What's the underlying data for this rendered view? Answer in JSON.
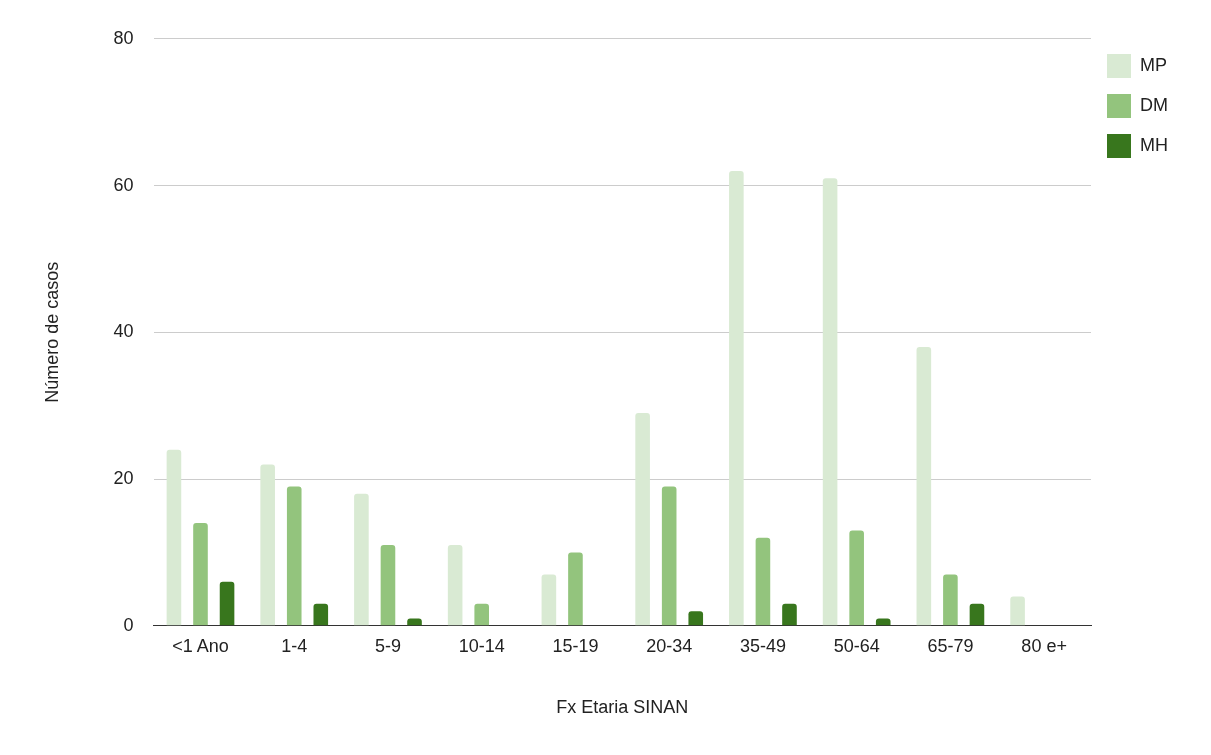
{
  "chart_data": {
    "type": "bar",
    "xlabel": "Fx Etaria SINAN",
    "ylabel": "Número de casos",
    "categories": [
      "<1 Ano",
      "1-4",
      "5-9",
      "10-14",
      "15-19",
      "20-34",
      "35-49",
      "50-64",
      "65-79",
      "80 e+"
    ],
    "series": [
      {
        "name": "MP",
        "color": "#d9ead3",
        "values": [
          24,
          22,
          18,
          11,
          7,
          29,
          62,
          61,
          38,
          4
        ]
      },
      {
        "name": "DM",
        "color": "#93c47d",
        "values": [
          14,
          19,
          11,
          3,
          10,
          19,
          12,
          13,
          7,
          null
        ]
      },
      {
        "name": "MH",
        "color": "#38761d",
        "values": [
          6,
          3,
          1,
          null,
          null,
          2,
          3,
          1,
          3,
          null
        ]
      }
    ],
    "ylim": [
      0,
      80
    ],
    "yticks": [
      0,
      20,
      40,
      60,
      80
    ],
    "grid": "y",
    "legend": "top right"
  }
}
